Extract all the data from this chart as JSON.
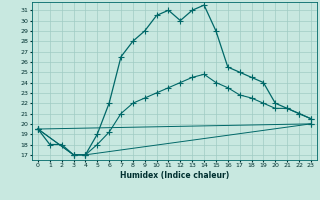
{
  "xlabel": "Humidex (Indice chaleur)",
  "xlim": [
    -0.5,
    23.5
  ],
  "ylim": [
    16.5,
    31.8
  ],
  "xtick_labels": [
    "0",
    "1",
    "2",
    "3",
    "4",
    "5",
    "6",
    "7",
    "8",
    "9",
    "10",
    "11",
    "12",
    "13",
    "14",
    "15",
    "16",
    "17",
    "18",
    "19",
    "20",
    "21",
    "22",
    "23"
  ],
  "ytick_values": [
    17,
    18,
    19,
    20,
    21,
    22,
    23,
    24,
    25,
    26,
    27,
    28,
    29,
    30,
    31
  ],
  "background_color": "#c8e8e0",
  "grid_color": "#a0ccc4",
  "line_color": "#006868",
  "line1_x": [
    0,
    1,
    2,
    3,
    4,
    5,
    6,
    7,
    8,
    9,
    10,
    11,
    12,
    13,
    14,
    15,
    16,
    17,
    18,
    19,
    20,
    21,
    22,
    23
  ],
  "line1_y": [
    19.5,
    18.0,
    18.0,
    17.0,
    17.0,
    19.0,
    22.0,
    26.5,
    28.0,
    29.0,
    30.5,
    31.0,
    30.0,
    31.0,
    31.5,
    29.0,
    25.5,
    25.0,
    24.5,
    24.0,
    22.0,
    21.5,
    21.0,
    20.5
  ],
  "line2_x": [
    0,
    3,
    4,
    5,
    6,
    7,
    8,
    9,
    10,
    11,
    12,
    13,
    14,
    15,
    16,
    17,
    18,
    19,
    20,
    21,
    22,
    23
  ],
  "line2_y": [
    19.5,
    17.0,
    17.0,
    18.0,
    19.2,
    21.0,
    22.0,
    22.5,
    23.0,
    23.5,
    24.0,
    24.5,
    24.8,
    24.0,
    23.5,
    22.8,
    22.5,
    22.0,
    21.5,
    21.5,
    21.0,
    20.5
  ],
  "line3_x": [
    0,
    3,
    4,
    23
  ],
  "line3_y": [
    19.5,
    17.0,
    17.0,
    20.0
  ],
  "line4_x": [
    0,
    23
  ],
  "line4_y": [
    19.5,
    20.0
  ]
}
